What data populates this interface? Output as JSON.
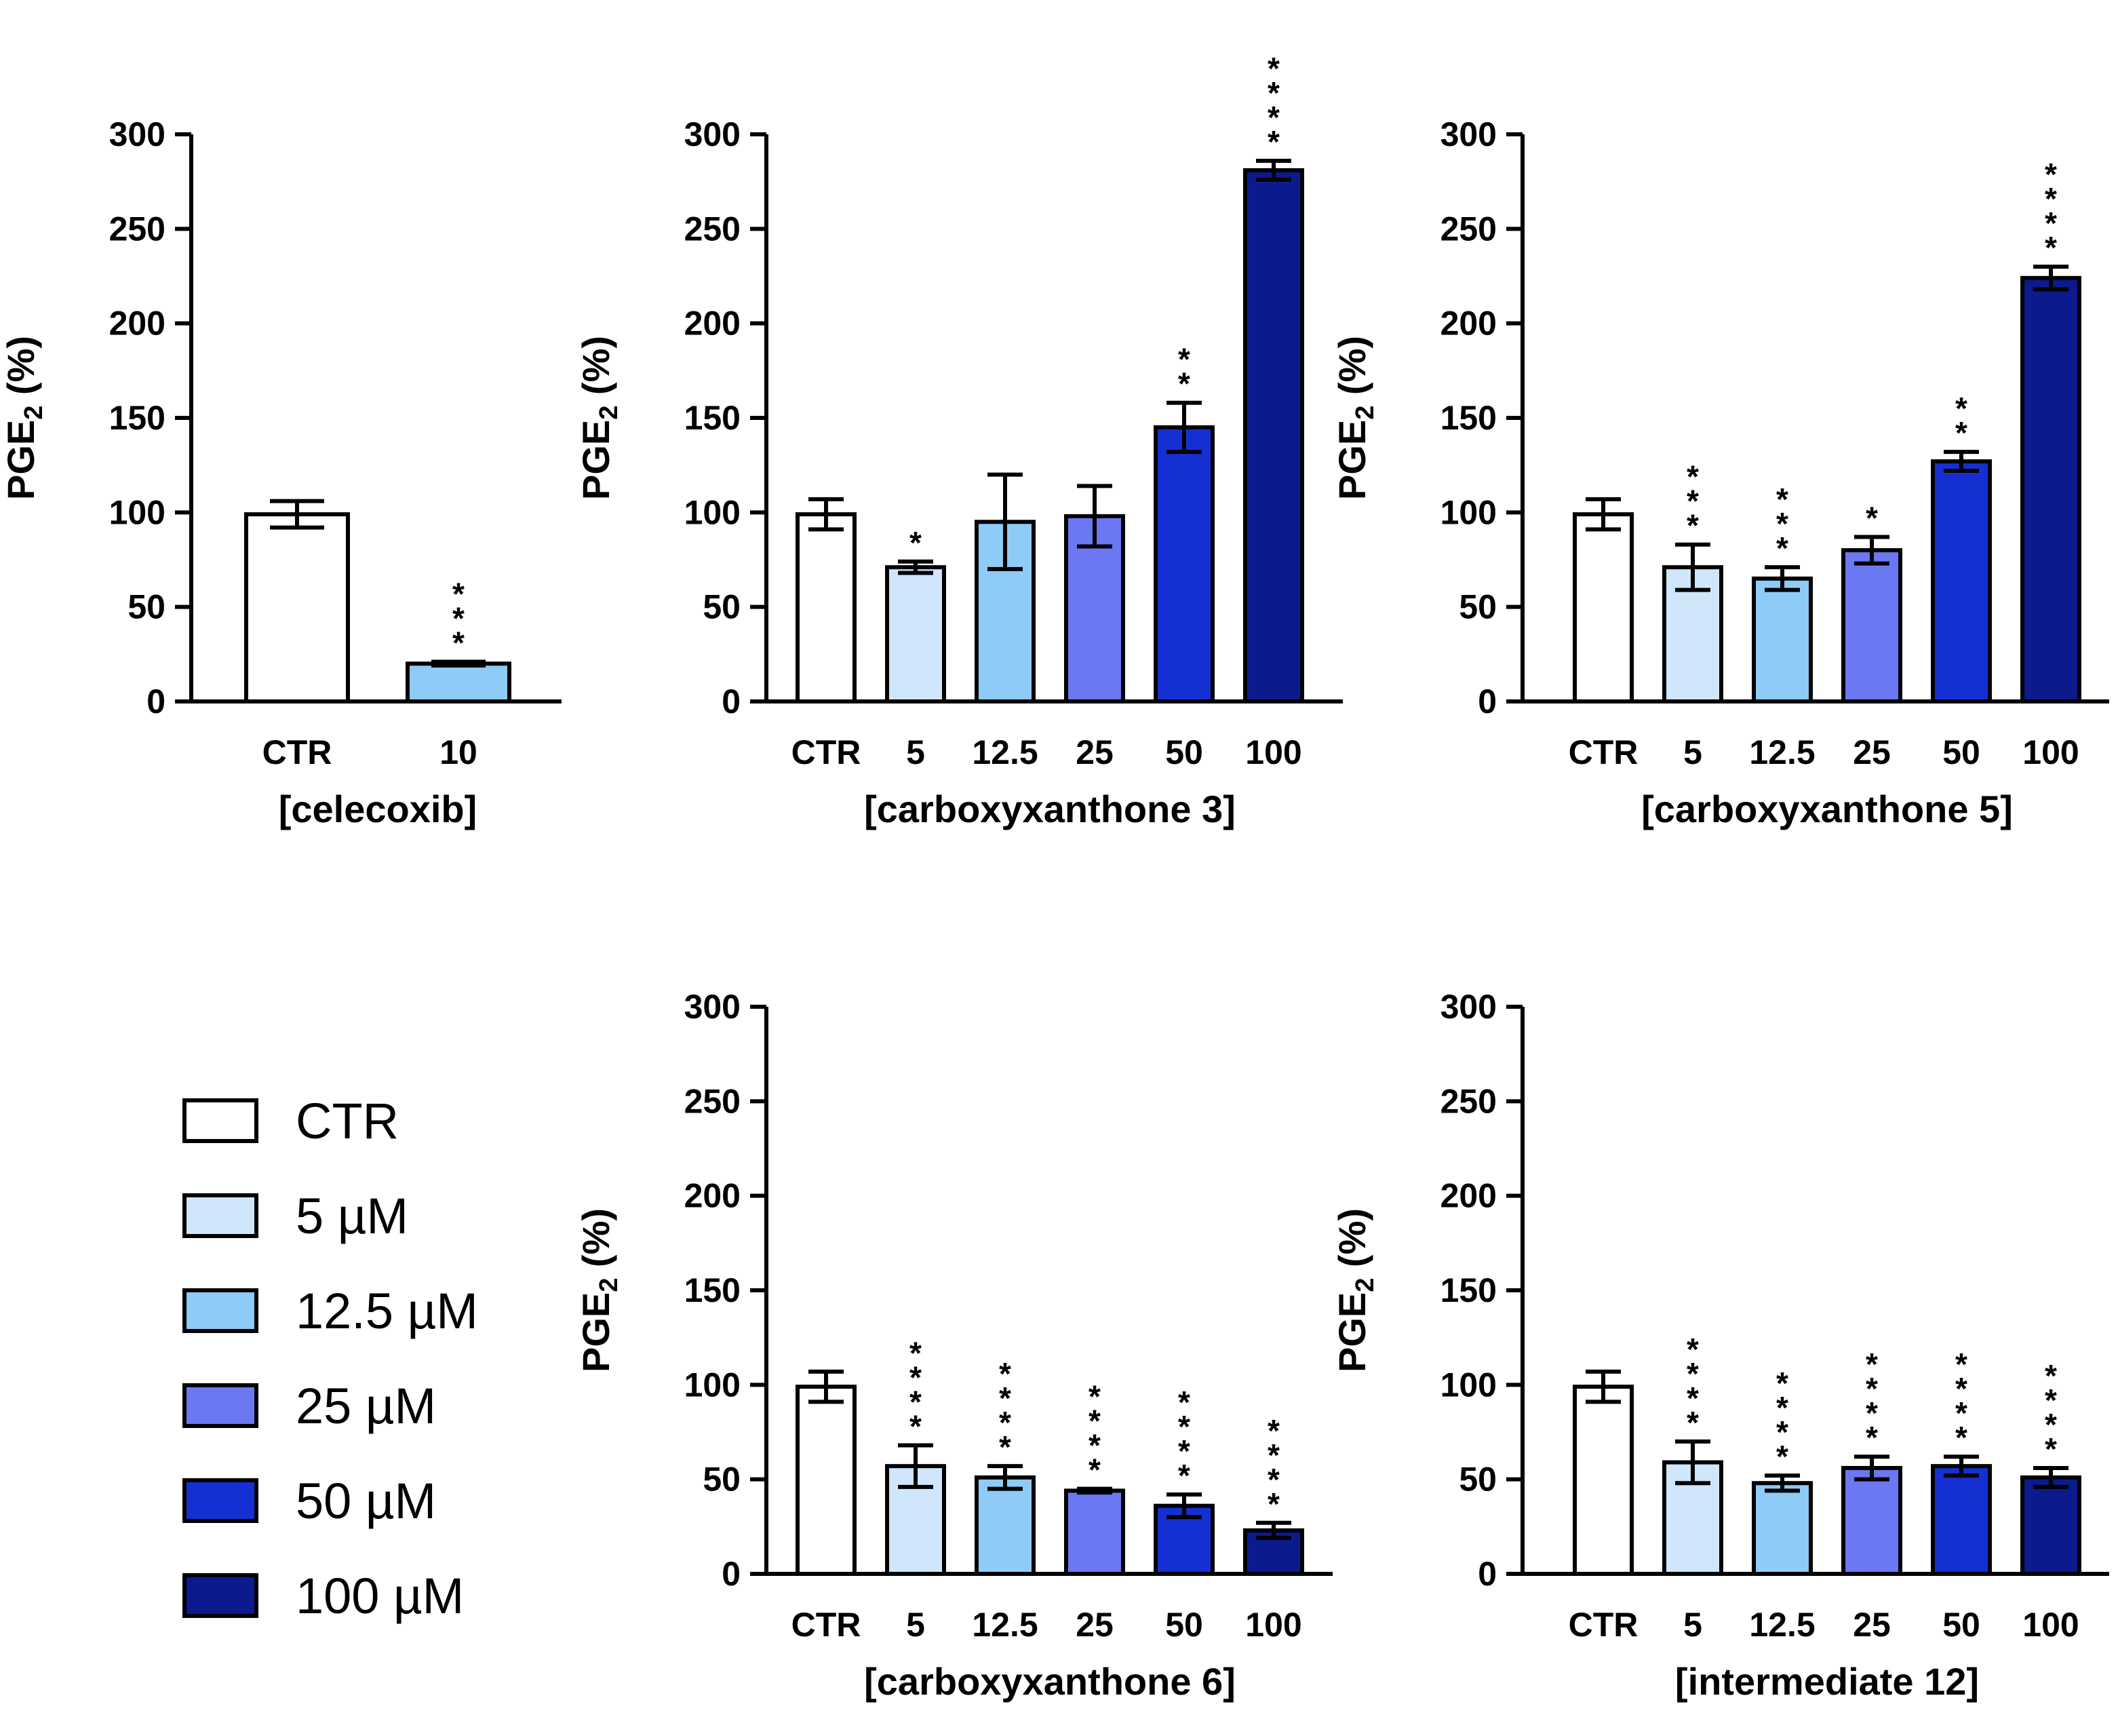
{
  "colors": {
    "CTR": "#ffffff",
    "5": "#cfe6fb",
    "12.5": "#8ecbf7",
    "25": "#6b78f2",
    "50": "#1530d2",
    "100": "#0b1a8c"
  },
  "legend": [
    {
      "label": "CTR",
      "key": "CTR"
    },
    {
      "label": "5 µM",
      "key": "5"
    },
    {
      "label": "12.5 µM",
      "key": "12.5"
    },
    {
      "label": "25 µM",
      "key": "25"
    },
    {
      "label": "50 µM",
      "key": "50"
    },
    {
      "label": "100 µM",
      "key": "100"
    }
  ],
  "chart_data": [
    {
      "type": "bar",
      "xlabel": "[celecoxib]",
      "ylabel": "PGE2 (%)",
      "ylim": [
        0,
        300
      ],
      "yticks": [
        "0",
        "50",
        "100",
        "150",
        "200",
        "250",
        "300"
      ],
      "categories": [
        "CTR",
        "10"
      ],
      "keys": [
        "CTR",
        "12.5"
      ],
      "values": [
        99,
        20
      ],
      "errors": [
        7,
        1
      ],
      "significance": [
        "",
        "***"
      ]
    },
    {
      "type": "bar",
      "xlabel": "[carboxyxanthone 3]",
      "ylabel": "PGE2 (%)",
      "ylim": [
        0,
        300
      ],
      "yticks": [
        "0",
        "50",
        "100",
        "150",
        "200",
        "250",
        "300"
      ],
      "categories": [
        "CTR",
        "5",
        "12.5",
        "25",
        "50",
        "100"
      ],
      "keys": [
        "CTR",
        "5",
        "12.5",
        "25",
        "50",
        "100"
      ],
      "values": [
        99,
        71,
        95,
        98,
        145,
        281
      ],
      "errors": [
        8,
        3,
        25,
        16,
        13,
        5
      ],
      "significance": [
        "",
        "*",
        "",
        "",
        "**",
        "****"
      ]
    },
    {
      "type": "bar",
      "xlabel": "[carboxyxanthone 5]",
      "ylabel": "PGE2 (%)",
      "ylim": [
        0,
        300
      ],
      "yticks": [
        "0",
        "50",
        "100",
        "150",
        "200",
        "250",
        "300"
      ],
      "categories": [
        "CTR",
        "5",
        "12.5",
        "25",
        "50",
        "100"
      ],
      "keys": [
        "CTR",
        "5",
        "12.5",
        "25",
        "50",
        "100"
      ],
      "values": [
        99,
        71,
        65,
        80,
        127,
        224
      ],
      "errors": [
        8,
        12,
        6,
        7,
        5,
        6
      ],
      "significance": [
        "",
        "***",
        "***",
        "*",
        "**",
        "****"
      ]
    },
    {
      "type": "bar",
      "xlabel": "[carboxyxanthone 6]",
      "ylabel": "PGE2 (%)",
      "ylim": [
        0,
        300
      ],
      "yticks": [
        "0",
        "50",
        "100",
        "150",
        "200",
        "250",
        "300"
      ],
      "categories": [
        "CTR",
        "5",
        "12.5",
        "25",
        "50",
        "100"
      ],
      "keys": [
        "CTR",
        "5",
        "12.5",
        "25",
        "50",
        "100"
      ],
      "values": [
        99,
        57,
        51,
        44,
        36,
        23
      ],
      "errors": [
        8,
        11,
        6,
        1,
        6,
        4
      ],
      "significance": [
        "",
        "****",
        "****",
        "****",
        "****",
        "****"
      ]
    },
    {
      "type": "bar",
      "xlabel": "[intermediate 12]",
      "ylabel": "PGE2 (%)",
      "ylim": [
        0,
        300
      ],
      "yticks": [
        "0",
        "50",
        "100",
        "150",
        "200",
        "250",
        "300"
      ],
      "categories": [
        "CTR",
        "5",
        "12.5",
        "25",
        "50",
        "100"
      ],
      "keys": [
        "CTR",
        "5",
        "12.5",
        "25",
        "50",
        "100"
      ],
      "values": [
        99,
        59,
        48,
        56,
        57,
        51
      ],
      "errors": [
        8,
        11,
        4,
        6,
        5,
        5
      ],
      "significance": [
        "",
        "****",
        "****",
        "****",
        "****",
        "****"
      ]
    }
  ]
}
